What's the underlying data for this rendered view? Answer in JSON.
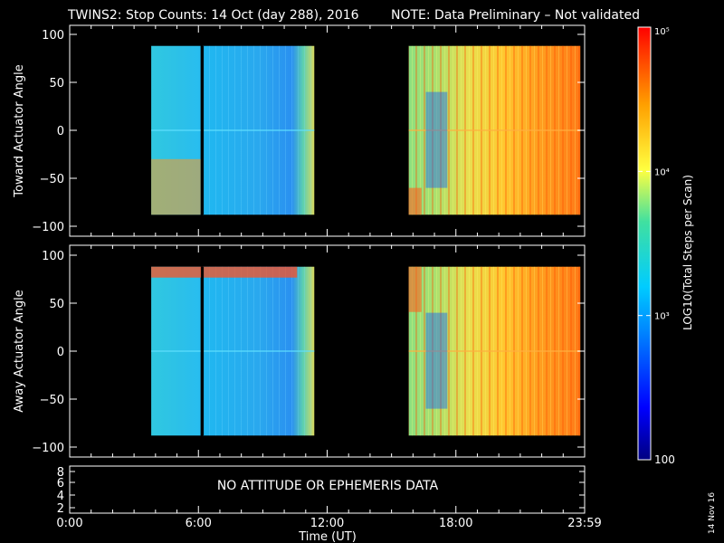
{
  "title": {
    "main": "TWINS2: Stop Counts: 14 Oct (day 288), 2016",
    "note": "NOTE: Data Preliminary – Not validated",
    "note_color": "#ff2020"
  },
  "colorbar": {
    "label": "LOG10(Total Steps per Scan)",
    "ticks": [
      "10⁵",
      "10⁴",
      "10³",
      "100"
    ],
    "tick_values": [
      100000,
      10000,
      1000,
      100
    ],
    "range": [
      100,
      100000
    ],
    "scale": "log",
    "colormap": "rainbow (blue → cyan → yellow → red)"
  },
  "panels": [
    {
      "ylabel": "Toward Actuator Angle",
      "yticks": [
        "100",
        "50",
        "0",
        "−50",
        "−100"
      ]
    },
    {
      "ylabel": "Away Actuator Angle",
      "yticks": [
        "100",
        "50",
        "0",
        "−50",
        "−100"
      ]
    },
    {
      "yticks": [
        "8",
        "6",
        "4",
        "2"
      ],
      "message": "NO ATTITUDE OR EPHEMERIS DATA"
    }
  ],
  "xaxis": {
    "label": "Time (UT)",
    "ticks": [
      "0:00",
      "6:00",
      "12:00",
      "18:00",
      "23:59"
    ]
  },
  "date_stamp": "14 Nov 16",
  "chart_data": [
    {
      "type": "heatmap",
      "title": "TWINS2: Stop Counts: 14 Oct (day 288), 2016",
      "ylabel": "Toward Actuator Angle",
      "xlabel": "Time (UT)",
      "xlim_hours": [
        0,
        24
      ],
      "ylim": [
        -100,
        100
      ],
      "data_segments_hours": [
        [
          3.8,
          6.1
        ],
        [
          6.2,
          11.4
        ],
        [
          15.8,
          23.8
        ]
      ],
      "data_angle_range": [
        -88,
        88
      ],
      "typical_log10_counts": {
        "segment1": 2.9,
        "segment2": 2.9,
        "segment3": 4.3
      }
    },
    {
      "type": "heatmap",
      "ylabel": "Away Actuator Angle",
      "xlabel": "Time (UT)",
      "xlim_hours": [
        0,
        24
      ],
      "ylim": [
        -100,
        100
      ],
      "data_segments_hours": [
        [
          3.8,
          6.1
        ],
        [
          6.2,
          11.4
        ],
        [
          15.8,
          23.8
        ]
      ],
      "data_angle_range": [
        -88,
        88
      ],
      "typical_log10_counts": {
        "segment1": 2.9,
        "segment2": 2.9,
        "segment3": 4.3
      }
    }
  ]
}
